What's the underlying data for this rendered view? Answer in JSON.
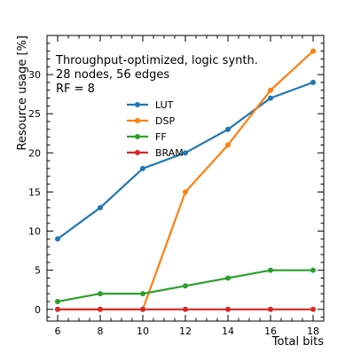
{
  "chart_data": {
    "type": "line",
    "title": "",
    "annotations": [
      "Throughput-optimized, logic synth.",
      "28 nodes, 56 edges",
      "RF = 8"
    ],
    "xlabel": "Total bits",
    "ylabel": "Resource usage [%]",
    "x": [
      6,
      8,
      10,
      12,
      14,
      16,
      18
    ],
    "xlim": [
      5.5,
      18.5
    ],
    "ylim": [
      -1.5,
      35
    ],
    "xticks": [
      6,
      8,
      10,
      12,
      14,
      16,
      18
    ],
    "yticks": [
      0,
      5,
      10,
      15,
      20,
      25,
      30
    ],
    "grid": false,
    "legend_position": "upper-center",
    "series": [
      {
        "name": "LUT",
        "color": "#1f77b4",
        "values": [
          9,
          13,
          18,
          20,
          23,
          27,
          29
        ]
      },
      {
        "name": "DSP",
        "color": "#ff7f0e",
        "values": [
          0,
          0,
          0,
          15,
          21,
          28,
          33
        ]
      },
      {
        "name": "FF",
        "color": "#2ca02c",
        "values": [
          1,
          2,
          2,
          3,
          4,
          5,
          5
        ]
      },
      {
        "name": "BRAM",
        "color": "#d62728",
        "values": [
          0,
          0,
          0,
          0,
          0,
          0,
          0
        ]
      }
    ]
  }
}
